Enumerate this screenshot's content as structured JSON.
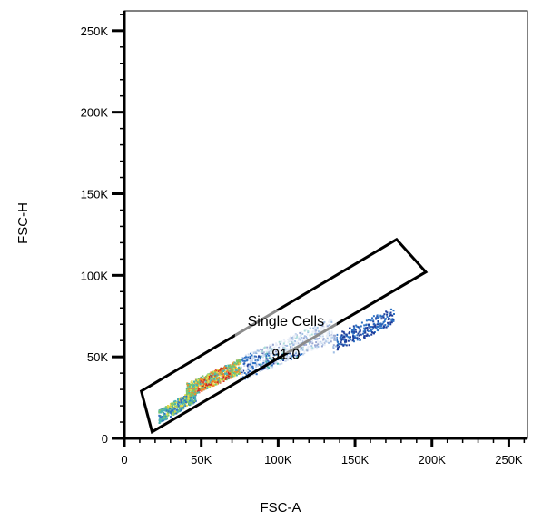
{
  "chart_data": {
    "type": "scatter",
    "subtype": "flow-cytometry-density-plot",
    "xlabel": "FSC-A",
    "ylabel": "FSC-H",
    "xlim": [
      0,
      262144
    ],
    "ylim": [
      0,
      262144
    ],
    "x_ticks": [
      {
        "value": 0,
        "label": "0"
      },
      {
        "value": 50000,
        "label": "50K"
      },
      {
        "value": 100000,
        "label": "100K"
      },
      {
        "value": 150000,
        "label": "150K"
      },
      {
        "value": 200000,
        "label": "200K"
      },
      {
        "value": 250000,
        "label": "250K"
      }
    ],
    "y_ticks": [
      {
        "value": 0,
        "label": "0"
      },
      {
        "value": 50000,
        "label": "50K"
      },
      {
        "value": 100000,
        "label": "100K"
      },
      {
        "value": 150000,
        "label": "150K"
      },
      {
        "value": 200000,
        "label": "200K"
      },
      {
        "value": 250000,
        "label": "250K"
      }
    ],
    "gate": {
      "name": "Single Cells",
      "value": "91.0",
      "polygon": [
        [
          11000,
          29000
        ],
        [
          18000,
          4000
        ],
        [
          196000,
          102000
        ],
        [
          177000,
          122000
        ]
      ]
    },
    "density_regions": [
      {
        "x_range": [
          22000,
          46000
        ],
        "y_range": [
          12000,
          30000
        ],
        "level": "medium"
      },
      {
        "x_range": [
          40000,
          75000
        ],
        "y_range": [
          28000,
          48000
        ],
        "level": "high"
      },
      {
        "x_range": [
          75000,
          135000
        ],
        "y_range": [
          40000,
          72000
        ],
        "level": "low"
      },
      {
        "x_range": [
          135000,
          175000
        ],
        "y_range": [
          56000,
          80000
        ],
        "level": "very-low"
      }
    ],
    "colormap": [
      "#1f3f9c",
      "#2f72c4",
      "#4bb3b0",
      "#7cc86a",
      "#e6d84a",
      "#f08a2c",
      "#d62a1e"
    ],
    "grid": false,
    "legend": "none"
  }
}
